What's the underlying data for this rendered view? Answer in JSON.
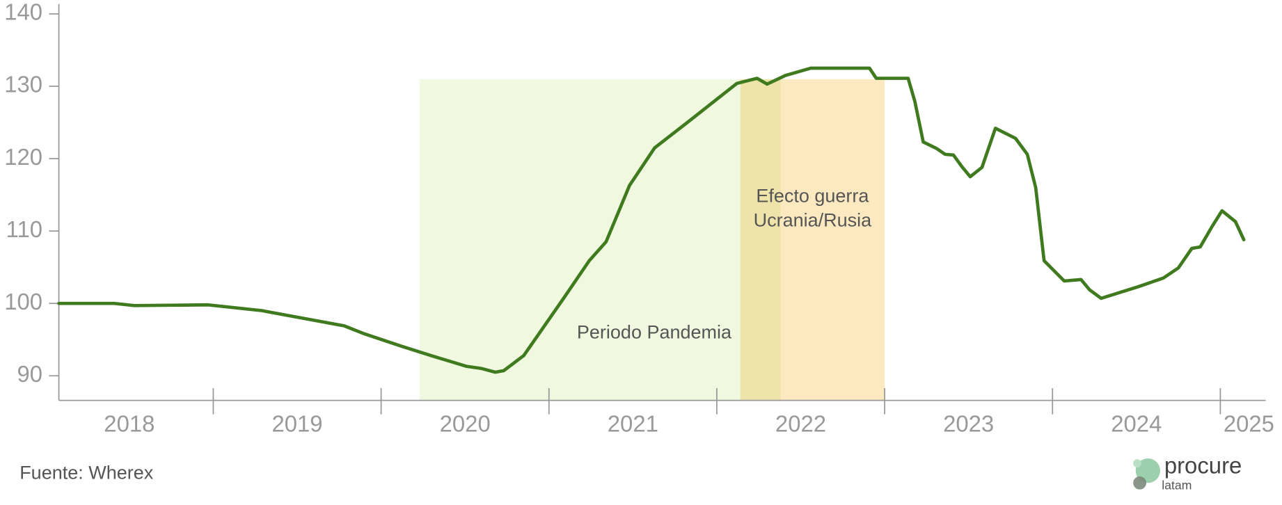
{
  "chart_data": {
    "type": "line",
    "x": [
      2018.08,
      2018.41,
      2018.53,
      2018.97,
      2019.29,
      2019.78,
      2019.9,
      2020.12,
      2020.31,
      2020.51,
      2020.6,
      2020.68,
      2020.73,
      2020.85,
      2020.97,
      2021.09,
      2021.24,
      2021.34,
      2021.48,
      2021.63,
      2021.83,
      2022.12,
      2022.24,
      2022.3,
      2022.41,
      2022.56,
      2022.91,
      2022.95,
      2023.14,
      2023.18,
      2023.23,
      2023.31,
      2023.36,
      2023.41,
      2023.46,
      2023.51,
      2023.58,
      2023.66,
      2023.78,
      2023.85,
      2023.9,
      2023.95,
      2024.07,
      2024.17,
      2024.22,
      2024.29,
      2024.51,
      2024.66,
      2024.75,
      2024.83,
      2024.88,
      2024.95,
      2025.01,
      2025.09,
      2025.14
    ],
    "series": [
      {
        "color": "#3f7a1f",
        "values": [
          100,
          100,
          99.7,
          99.8,
          99.0,
          96.9,
          95.8,
          94.1,
          92.7,
          91.3,
          91.0,
          90.5,
          90.7,
          92.8,
          96.8,
          100.8,
          105.9,
          108.5,
          116.3,
          121.5,
          125.1,
          130.4,
          131.1,
          130.3,
          131.5,
          132.5,
          132.5,
          131.1,
          131.1,
          127.9,
          122.3,
          121.4,
          120.6,
          120.5,
          118.9,
          117.5,
          118.8,
          124.2,
          122.8,
          120.6,
          116.0,
          105.9,
          103.1,
          103.3,
          101.9,
          100.7,
          102.3,
          103.5,
          104.9,
          107.6,
          107.8,
          110.6,
          112.8,
          111.3,
          108.8
        ]
      }
    ],
    "xlim": [
      2018.08,
      2025.27
    ],
    "ylim": [
      86.6,
      140
    ],
    "yticks": [
      90,
      100,
      110,
      120,
      130,
      140
    ],
    "xticks": [
      {
        "value": 2018.5,
        "label": "2018"
      },
      {
        "value": 2019.5,
        "label": "2019"
      },
      {
        "value": 2020.5,
        "label": "2020"
      },
      {
        "value": 2021.5,
        "label": "2021"
      },
      {
        "value": 2022.5,
        "label": "2022"
      },
      {
        "value": 2023.5,
        "label": "2023"
      },
      {
        "value": 2024.5,
        "label": "2024"
      },
      {
        "value": 2025.17,
        "label": "2025"
      }
    ],
    "xticks_minor": [
      2019,
      2020,
      2021,
      2022,
      2023,
      2024,
      2025
    ],
    "regions": [
      {
        "label": [
          "Periodo Pandemia"
        ],
        "x": [
          2020.23,
          2022.38
        ],
        "color": "#f0f9e0"
      },
      {
        "label": [
          "Efecto guerra",
          "Ucrania/Rusia"
        ],
        "x": [
          2022.14,
          2023.0
        ],
        "color": "#fde9c0"
      }
    ],
    "source": "Fuente: Wherex"
  },
  "logo": {
    "name": "procure",
    "sub": "latam"
  }
}
